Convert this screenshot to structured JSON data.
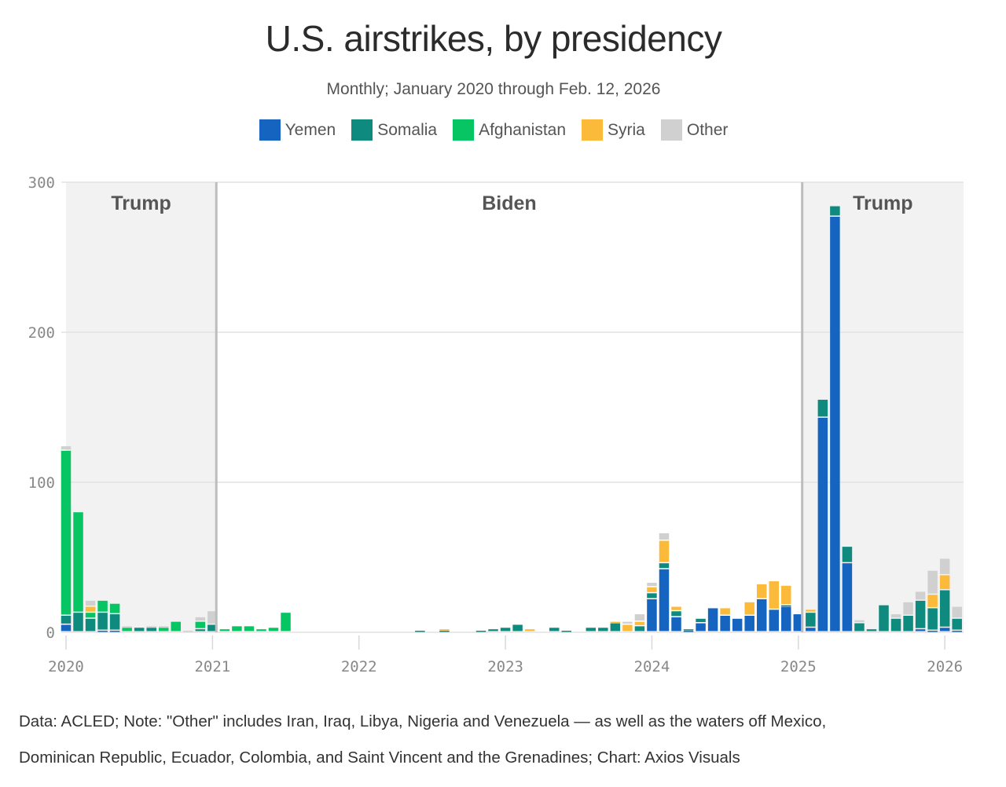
{
  "header": {
    "title": "U.S. airstrikes, by presidency",
    "subtitle": "Monthly; January 2020 through Feb. 12, 2026"
  },
  "legend": [
    {
      "name": "Yemen",
      "color": "#1565c0"
    },
    {
      "name": "Somalia",
      "color": "#0f8a7e"
    },
    {
      "name": "Afghanistan",
      "color": "#07c563"
    },
    {
      "name": "Syria",
      "color": "#fbba3a"
    },
    {
      "name": "Other",
      "color": "#d0d0d0"
    }
  ],
  "footer": {
    "line1": "Data: ACLED; Note: \"Other\" includes Iran, Iraq, Libya, Nigeria and Venezuela — as well as the waters off Mexico,",
    "line2": "Dominican Republic, Ecuador, Colombia, and Saint Vincent and the Grenadines; Chart: Axios Visuals"
  },
  "chart_data": {
    "type": "bar",
    "stacked": true,
    "title": "U.S. airstrikes, by presidency",
    "subtitle": "Monthly; January 2020 through Feb. 12, 2026",
    "xlabel": "",
    "ylabel": "",
    "ylim": [
      0,
      300
    ],
    "yticks": [
      0,
      100,
      200,
      300
    ],
    "xticks": [
      "2020",
      "2021",
      "2022",
      "2023",
      "2024",
      "2025",
      "2026"
    ],
    "grid": true,
    "legend_position": "top-center",
    "start_month": "2020-01",
    "series_order": [
      "Yemen",
      "Somalia",
      "Afghanistan",
      "Syria",
      "Other"
    ],
    "eras": [
      {
        "label": "Trump",
        "start": 0,
        "end": 12.7,
        "shaded": true
      },
      {
        "label": "Biden",
        "start": 12.7,
        "end": 60.7,
        "shaded": false
      },
      {
        "label": "Trump",
        "start": 60.7,
        "end": 74.5,
        "shaded": true
      }
    ],
    "months": [
      {
        "m": "2020-01",
        "Yemen": 5,
        "Somalia": 6,
        "Afghanistan": 110,
        "Syria": 0,
        "Other": 3
      },
      {
        "m": "2020-02",
        "Yemen": 0,
        "Somalia": 13,
        "Afghanistan": 67,
        "Syria": 0,
        "Other": 0
      },
      {
        "m": "2020-03",
        "Yemen": 0,
        "Somalia": 9,
        "Afghanistan": 4,
        "Syria": 4,
        "Other": 4
      },
      {
        "m": "2020-04",
        "Yemen": 1,
        "Somalia": 12,
        "Afghanistan": 8,
        "Syria": 0,
        "Other": 0
      },
      {
        "m": "2020-05",
        "Yemen": 1,
        "Somalia": 11,
        "Afghanistan": 7,
        "Syria": 0,
        "Other": 0
      },
      {
        "m": "2020-06",
        "Yemen": 0,
        "Somalia": 0,
        "Afghanistan": 3,
        "Syria": 0,
        "Other": 1
      },
      {
        "m": "2020-07",
        "Yemen": 0,
        "Somalia": 3,
        "Afghanistan": 0,
        "Syria": 0,
        "Other": 0
      },
      {
        "m": "2020-08",
        "Yemen": 0,
        "Somalia": 3,
        "Afghanistan": 0,
        "Syria": 0,
        "Other": 1
      },
      {
        "m": "2020-09",
        "Yemen": 0,
        "Somalia": 0,
        "Afghanistan": 3,
        "Syria": 0,
        "Other": 1
      },
      {
        "m": "2020-10",
        "Yemen": 0,
        "Somalia": 0,
        "Afghanistan": 7,
        "Syria": 0,
        "Other": 0
      },
      {
        "m": "2020-11",
        "Yemen": 0,
        "Somalia": 0,
        "Afghanistan": 0,
        "Syria": 0,
        "Other": 1
      },
      {
        "m": "2020-12",
        "Yemen": 0,
        "Somalia": 2,
        "Afghanistan": 5,
        "Syria": 0,
        "Other": 3
      },
      {
        "m": "2021-01",
        "Yemen": 0,
        "Somalia": 5,
        "Afghanistan": 0,
        "Syria": 0,
        "Other": 9
      },
      {
        "m": "2021-02",
        "Yemen": 0,
        "Somalia": 0,
        "Afghanistan": 2,
        "Syria": 0,
        "Other": 0
      },
      {
        "m": "2021-03",
        "Yemen": 0,
        "Somalia": 0,
        "Afghanistan": 4,
        "Syria": 0,
        "Other": 0
      },
      {
        "m": "2021-04",
        "Yemen": 0,
        "Somalia": 0,
        "Afghanistan": 4,
        "Syria": 0,
        "Other": 0
      },
      {
        "m": "2021-05",
        "Yemen": 0,
        "Somalia": 0,
        "Afghanistan": 2,
        "Syria": 0,
        "Other": 0
      },
      {
        "m": "2021-06",
        "Yemen": 0,
        "Somalia": 0,
        "Afghanistan": 3,
        "Syria": 0,
        "Other": 0
      },
      {
        "m": "2021-07",
        "Yemen": 0,
        "Somalia": 0,
        "Afghanistan": 13,
        "Syria": 0,
        "Other": 0
      },
      {
        "m": "2021-08",
        "Yemen": 0,
        "Somalia": 0,
        "Afghanistan": 0,
        "Syria": 0,
        "Other": 0
      },
      {
        "m": "2021-09",
        "Yemen": 0,
        "Somalia": 0,
        "Afghanistan": 0,
        "Syria": 0,
        "Other": 0
      },
      {
        "m": "2021-10",
        "Yemen": 0,
        "Somalia": 0,
        "Afghanistan": 0,
        "Syria": 0,
        "Other": 0
      },
      {
        "m": "2021-11",
        "Yemen": 0,
        "Somalia": 0,
        "Afghanistan": 0,
        "Syria": 0,
        "Other": 0
      },
      {
        "m": "2021-12",
        "Yemen": 0,
        "Somalia": 0,
        "Afghanistan": 0,
        "Syria": 0,
        "Other": 0
      },
      {
        "m": "2022-01",
        "Yemen": 0,
        "Somalia": 0,
        "Afghanistan": 0,
        "Syria": 0,
        "Other": 0
      },
      {
        "m": "2022-02",
        "Yemen": 0,
        "Somalia": 0,
        "Afghanistan": 0,
        "Syria": 0,
        "Other": 0
      },
      {
        "m": "2022-03",
        "Yemen": 0,
        "Somalia": 0,
        "Afghanistan": 0,
        "Syria": 0,
        "Other": 0
      },
      {
        "m": "2022-04",
        "Yemen": 0,
        "Somalia": 0,
        "Afghanistan": 0,
        "Syria": 0,
        "Other": 0
      },
      {
        "m": "2022-05",
        "Yemen": 0,
        "Somalia": 0,
        "Afghanistan": 0,
        "Syria": 0,
        "Other": 0
      },
      {
        "m": "2022-06",
        "Yemen": 0,
        "Somalia": 1,
        "Afghanistan": 0,
        "Syria": 0,
        "Other": 0
      },
      {
        "m": "2022-07",
        "Yemen": 0,
        "Somalia": 0,
        "Afghanistan": 0,
        "Syria": 0,
        "Other": 0
      },
      {
        "m": "2022-08",
        "Yemen": 0,
        "Somalia": 1,
        "Afghanistan": 0,
        "Syria": 1,
        "Other": 0
      },
      {
        "m": "2022-09",
        "Yemen": 0,
        "Somalia": 0,
        "Afghanistan": 0,
        "Syria": 0,
        "Other": 0
      },
      {
        "m": "2022-10",
        "Yemen": 0,
        "Somalia": 0,
        "Afghanistan": 0,
        "Syria": 0,
        "Other": 0
      },
      {
        "m": "2022-11",
        "Yemen": 0,
        "Somalia": 1,
        "Afghanistan": 0,
        "Syria": 0,
        "Other": 0
      },
      {
        "m": "2022-12",
        "Yemen": 0,
        "Somalia": 2,
        "Afghanistan": 0,
        "Syria": 0,
        "Other": 0
      },
      {
        "m": "2023-01",
        "Yemen": 0,
        "Somalia": 3,
        "Afghanistan": 0,
        "Syria": 0,
        "Other": 0
      },
      {
        "m": "2023-02",
        "Yemen": 0,
        "Somalia": 5,
        "Afghanistan": 0,
        "Syria": 0,
        "Other": 0
      },
      {
        "m": "2023-03",
        "Yemen": 0,
        "Somalia": 0,
        "Afghanistan": 0,
        "Syria": 2,
        "Other": 0
      },
      {
        "m": "2023-04",
        "Yemen": 0,
        "Somalia": 0,
        "Afghanistan": 0,
        "Syria": 0,
        "Other": 0
      },
      {
        "m": "2023-05",
        "Yemen": 0,
        "Somalia": 3,
        "Afghanistan": 0,
        "Syria": 0,
        "Other": 0
      },
      {
        "m": "2023-06",
        "Yemen": 0,
        "Somalia": 1,
        "Afghanistan": 0,
        "Syria": 0,
        "Other": 0
      },
      {
        "m": "2023-07",
        "Yemen": 0,
        "Somalia": 0,
        "Afghanistan": 0,
        "Syria": 0,
        "Other": 0
      },
      {
        "m": "2023-08",
        "Yemen": 0,
        "Somalia": 3,
        "Afghanistan": 0,
        "Syria": 0,
        "Other": 0
      },
      {
        "m": "2023-09",
        "Yemen": 0,
        "Somalia": 3,
        "Afghanistan": 0,
        "Syria": 0,
        "Other": 0
      },
      {
        "m": "2023-10",
        "Yemen": 0,
        "Somalia": 6,
        "Afghanistan": 0,
        "Syria": 1,
        "Other": 0
      },
      {
        "m": "2023-11",
        "Yemen": 0,
        "Somalia": 0,
        "Afghanistan": 0,
        "Syria": 5,
        "Other": 2
      },
      {
        "m": "2023-12",
        "Yemen": 0,
        "Somalia": 4,
        "Afghanistan": 0,
        "Syria": 3,
        "Other": 5
      },
      {
        "m": "2024-01",
        "Yemen": 22,
        "Somalia": 4,
        "Afghanistan": 0,
        "Syria": 4,
        "Other": 3
      },
      {
        "m": "2024-02",
        "Yemen": 42,
        "Somalia": 4,
        "Afghanistan": 0,
        "Syria": 15,
        "Other": 5
      },
      {
        "m": "2024-03",
        "Yemen": 10,
        "Somalia": 4,
        "Afghanistan": 0,
        "Syria": 3,
        "Other": 0
      },
      {
        "m": "2024-04",
        "Yemen": 1,
        "Somalia": 1,
        "Afghanistan": 0,
        "Syria": 0,
        "Other": 0
      },
      {
        "m": "2024-05",
        "Yemen": 6,
        "Somalia": 3,
        "Afghanistan": 0,
        "Syria": 0,
        "Other": 0
      },
      {
        "m": "2024-06",
        "Yemen": 16,
        "Somalia": 0,
        "Afghanistan": 0,
        "Syria": 0,
        "Other": 0
      },
      {
        "m": "2024-07",
        "Yemen": 11,
        "Somalia": 0,
        "Afghanistan": 0,
        "Syria": 5,
        "Other": 0
      },
      {
        "m": "2024-08",
        "Yemen": 9,
        "Somalia": 0,
        "Afghanistan": 0,
        "Syria": 0,
        "Other": 0
      },
      {
        "m": "2024-09",
        "Yemen": 11,
        "Somalia": 0,
        "Afghanistan": 0,
        "Syria": 9,
        "Other": 0
      },
      {
        "m": "2024-10",
        "Yemen": 22,
        "Somalia": 0,
        "Afghanistan": 0,
        "Syria": 10,
        "Other": 0
      },
      {
        "m": "2024-11",
        "Yemen": 15,
        "Somalia": 0,
        "Afghanistan": 0,
        "Syria": 19,
        "Other": 0
      },
      {
        "m": "2024-12",
        "Yemen": 17,
        "Somalia": 1,
        "Afghanistan": 0,
        "Syria": 13,
        "Other": 0
      },
      {
        "m": "2025-01",
        "Yemen": 12,
        "Somalia": 0,
        "Afghanistan": 0,
        "Syria": 0,
        "Other": 0
      },
      {
        "m": "2025-02",
        "Yemen": 3,
        "Somalia": 10,
        "Afghanistan": 0,
        "Syria": 2,
        "Other": 0
      },
      {
        "m": "2025-03",
        "Yemen": 143,
        "Somalia": 12,
        "Afghanistan": 0,
        "Syria": 0,
        "Other": 0
      },
      {
        "m": "2025-04",
        "Yemen": 277,
        "Somalia": 7,
        "Afghanistan": 0,
        "Syria": 0,
        "Other": 0
      },
      {
        "m": "2025-05",
        "Yemen": 46,
        "Somalia": 11,
        "Afghanistan": 0,
        "Syria": 0,
        "Other": 0
      },
      {
        "m": "2025-06",
        "Yemen": 0,
        "Somalia": 6,
        "Afghanistan": 0,
        "Syria": 0,
        "Other": 2
      },
      {
        "m": "2025-07",
        "Yemen": 0,
        "Somalia": 2,
        "Afghanistan": 0,
        "Syria": 0,
        "Other": 0
      },
      {
        "m": "2025-08",
        "Yemen": 0,
        "Somalia": 18,
        "Afghanistan": 0,
        "Syria": 0,
        "Other": 0
      },
      {
        "m": "2025-09",
        "Yemen": 0,
        "Somalia": 9,
        "Afghanistan": 0,
        "Syria": 0,
        "Other": 3
      },
      {
        "m": "2025-10",
        "Yemen": 0,
        "Somalia": 11,
        "Afghanistan": 0,
        "Syria": 0,
        "Other": 9
      },
      {
        "m": "2025-11",
        "Yemen": 2,
        "Somalia": 19,
        "Afghanistan": 0,
        "Syria": 0,
        "Other": 6
      },
      {
        "m": "2025-12",
        "Yemen": 1,
        "Somalia": 15,
        "Afghanistan": 0,
        "Syria": 9,
        "Other": 16
      },
      {
        "m": "2026-01",
        "Yemen": 3,
        "Somalia": 25,
        "Afghanistan": 0,
        "Syria": 10,
        "Other": 11
      },
      {
        "m": "2026-02",
        "Yemen": 1,
        "Somalia": 8,
        "Afghanistan": 0,
        "Syria": 0,
        "Other": 8
      }
    ]
  }
}
